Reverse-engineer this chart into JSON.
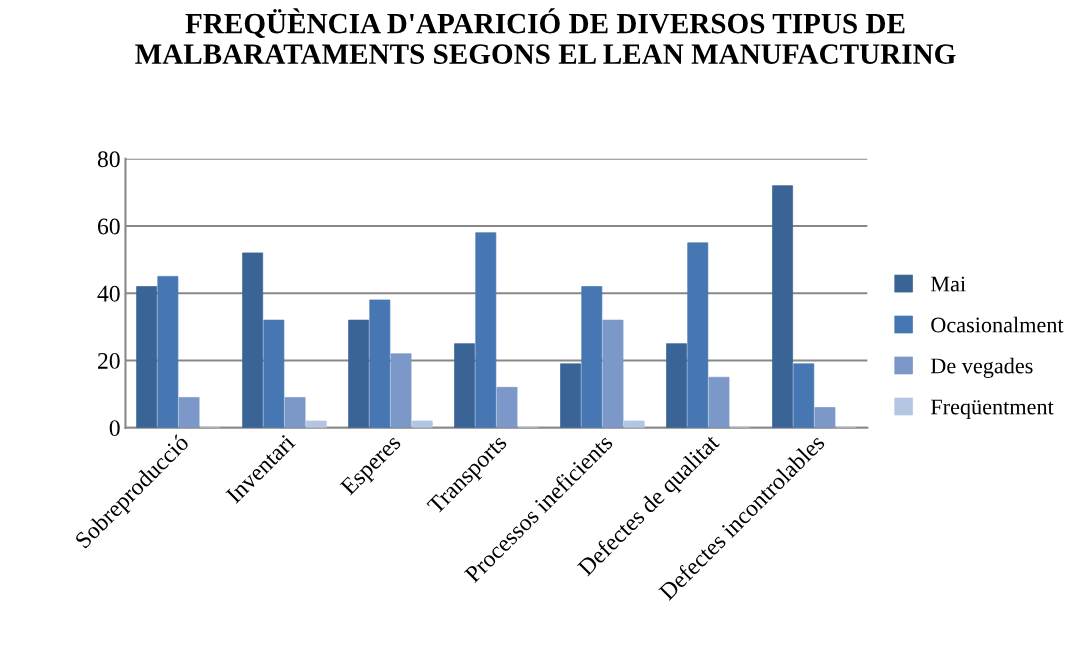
{
  "chart_data": {
    "type": "bar",
    "title": "FREQÜÈNCIA D'APARICIÓ DE DIVERSOS TIPUS DE MALBARATAMENTS SEGONS EL LEAN MANUFACTURING",
    "categories": [
      "Sobreproducció",
      "Inventari",
      "Esperes",
      "Transports",
      "Processos ineficients",
      "Defectes de qualitat",
      "Defectes incontrolables"
    ],
    "series": [
      {
        "name": "Mai",
        "color": "#3a6496",
        "values": [
          42,
          52,
          32,
          25,
          19,
          25,
          72
        ]
      },
      {
        "name": "Ocasionalment",
        "color": "#4777b2",
        "values": [
          45,
          32,
          38,
          58,
          42,
          55,
          19
        ]
      },
      {
        "name": "De vegades",
        "color": "#7b98c8",
        "values": [
          9,
          9,
          22,
          12,
          32,
          15,
          6
        ]
      },
      {
        "name": "Freqüentment",
        "color": "#b4c5e2",
        "values": [
          0,
          2,
          2,
          0,
          2,
          0,
          0
        ]
      }
    ],
    "ylim": [
      0,
      80
    ],
    "yticks": [
      0,
      20,
      40,
      60,
      80
    ],
    "grid": "y",
    "legend": "right"
  }
}
